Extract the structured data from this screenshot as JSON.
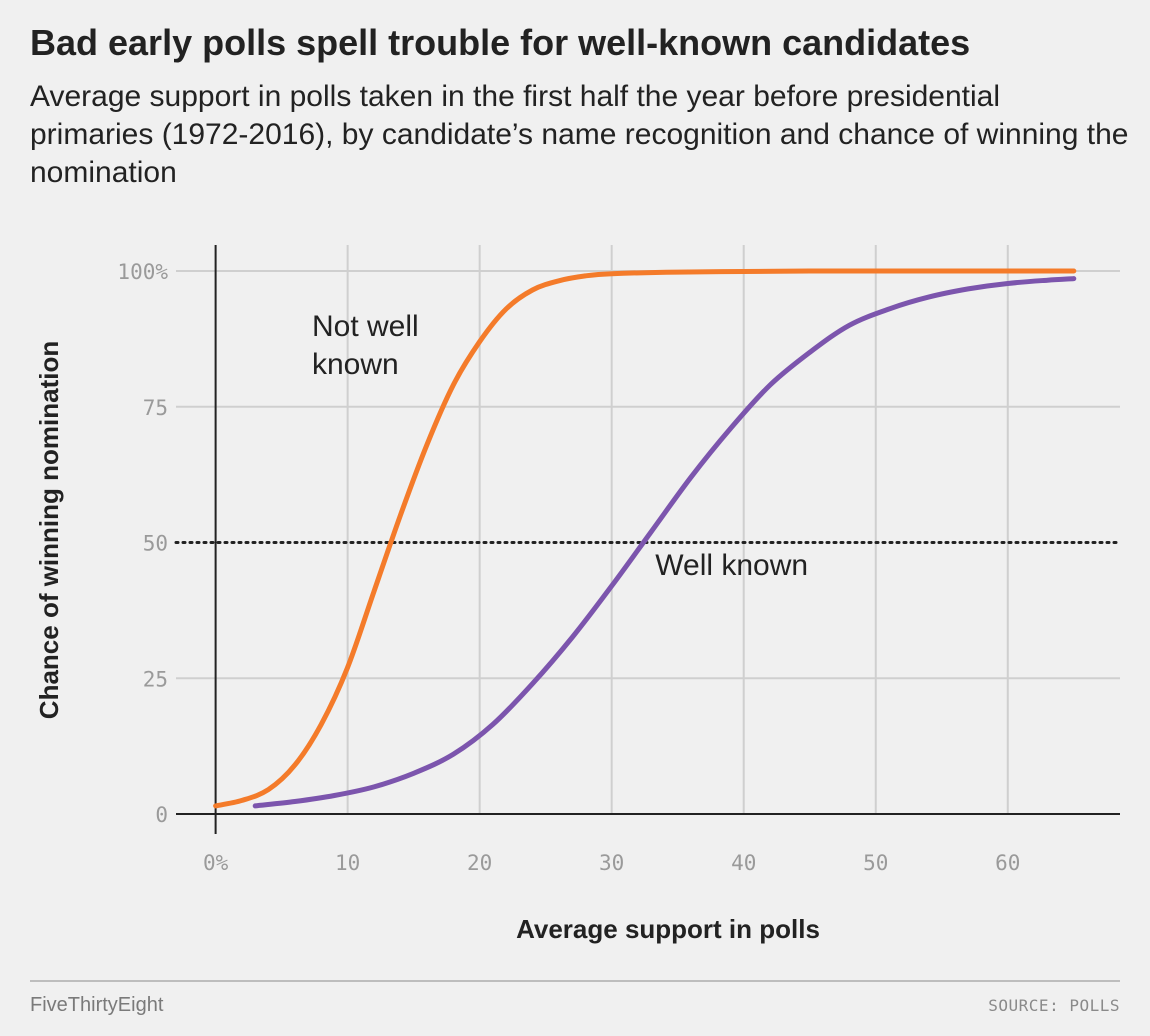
{
  "title": "Bad early polls spell trouble for well-known candidates",
  "subtitle": "Average support in polls taken in the first half the year before presidential primaries (1972-2016), by candidate’s name recognition and chance of winning the nomination",
  "footer": {
    "brand": "FiveThirtyEight",
    "source": "SOURCE: POLLS"
  },
  "chart_data": {
    "type": "line",
    "xlabel": "Average support in polls",
    "ylabel": "Chance of winning nomination",
    "xlim": [
      -3,
      68.5
    ],
    "ylim": [
      0,
      100
    ],
    "x_ticks": [
      0,
      10,
      20,
      30,
      40,
      50,
      60
    ],
    "x_tick_labels": [
      "0%",
      "10",
      "20",
      "30",
      "40",
      "50",
      "60"
    ],
    "y_ticks": [
      0,
      25,
      50,
      75,
      100
    ],
    "y_tick_labels": [
      "0",
      "25",
      "50",
      "75",
      "100%"
    ],
    "grid": true,
    "reference_line": {
      "y": 50,
      "style": "dotted"
    },
    "series": [
      {
        "name": "Not well known",
        "color": "#f47b2a",
        "x": [
          0,
          2,
          4,
          6,
          8,
          10,
          12,
          14,
          16,
          18,
          20,
          22,
          24,
          26,
          28,
          30,
          35,
          40,
          45,
          50,
          55,
          60,
          65
        ],
        "y": [
          1.5,
          2.5,
          4.5,
          9,
          16.5,
          27,
          41,
          55,
          68,
          79,
          87,
          93,
          96.5,
          98.2,
          99.1,
          99.5,
          99.8,
          99.9,
          100,
          100,
          100,
          100,
          100
        ]
      },
      {
        "name": "Well known",
        "color": "#7c55ad",
        "x": [
          3,
          6,
          9,
          12,
          15,
          18,
          21,
          24,
          27,
          30,
          33,
          36,
          39,
          42,
          45,
          48,
          51,
          54,
          57,
          60,
          63,
          65
        ],
        "y": [
          1.5,
          2.3,
          3.4,
          5,
          7.5,
          11,
          16.5,
          24,
          32.5,
          42,
          52,
          62,
          71,
          79,
          85,
          90,
          93,
          95.2,
          96.7,
          97.7,
          98.3,
          98.6
        ]
      }
    ],
    "annotations": [
      {
        "series": "Not well known",
        "lines": [
          "Not well",
          "known"
        ],
        "x": 7.3,
        "y": 88
      },
      {
        "series": "Well known",
        "lines": [
          "Well known"
        ],
        "x": 33.3,
        "y": 44
      }
    ]
  }
}
